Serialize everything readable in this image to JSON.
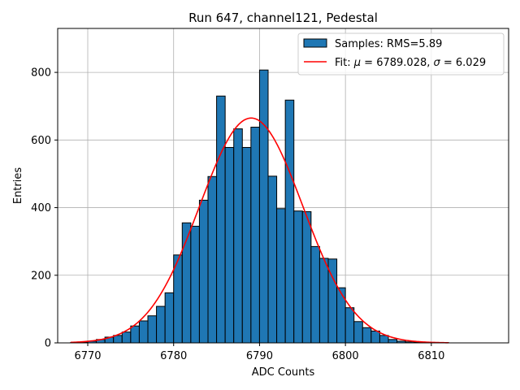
{
  "chart_data": {
    "type": "bar",
    "title": "Run 647, channel121, Pedestal",
    "xlabel": "ADC Counts",
    "ylabel": "Entries",
    "xlim": [
      6766.5,
      6819
    ],
    "ylim": [
      0,
      930
    ],
    "xticks": [
      6770,
      6780,
      6790,
      6800,
      6810
    ],
    "yticks": [
      0,
      200,
      400,
      600,
      800
    ],
    "grid": true,
    "legend_position": "top-right",
    "bar_color": "#1f77b4",
    "fit_color": "#ff0000",
    "histogram": {
      "name": "Samples: RMS=5.89",
      "bin_width": 1,
      "bin_starts": [
        6768,
        6769,
        6770,
        6771,
        6772,
        6773,
        6774,
        6775,
        6776,
        6777,
        6778,
        6779,
        6780,
        6781,
        6782,
        6783,
        6784,
        6785,
        6786,
        6787,
        6788,
        6789,
        6790,
        6791,
        6792,
        6793,
        6794,
        6795,
        6796,
        6797,
        6798,
        6799,
        6800,
        6801,
        6802,
        6803,
        6804,
        6805,
        6806,
        6807,
        6808,
        6809,
        6810,
        6811
      ],
      "counts": [
        1,
        2,
        5,
        10,
        17,
        22,
        32,
        50,
        65,
        80,
        108,
        148,
        260,
        355,
        345,
        422,
        492,
        730,
        578,
        633,
        578,
        638,
        807,
        493,
        397,
        718,
        390,
        388,
        285,
        250,
        248,
        163,
        104,
        63,
        45,
        35,
        22,
        10,
        5,
        3,
        2,
        1,
        0,
        1
      ]
    },
    "fit": {
      "name_prefix": "Fit: ",
      "name_mu": "μ",
      "name_mid": " = 6789.028, ",
      "name_sigma": "σ",
      "name_suffix": " = 6.029",
      "mu": 6789.028,
      "sigma": 6.029,
      "amplitude": 665,
      "x_range": [
        6768,
        6812
      ]
    }
  }
}
